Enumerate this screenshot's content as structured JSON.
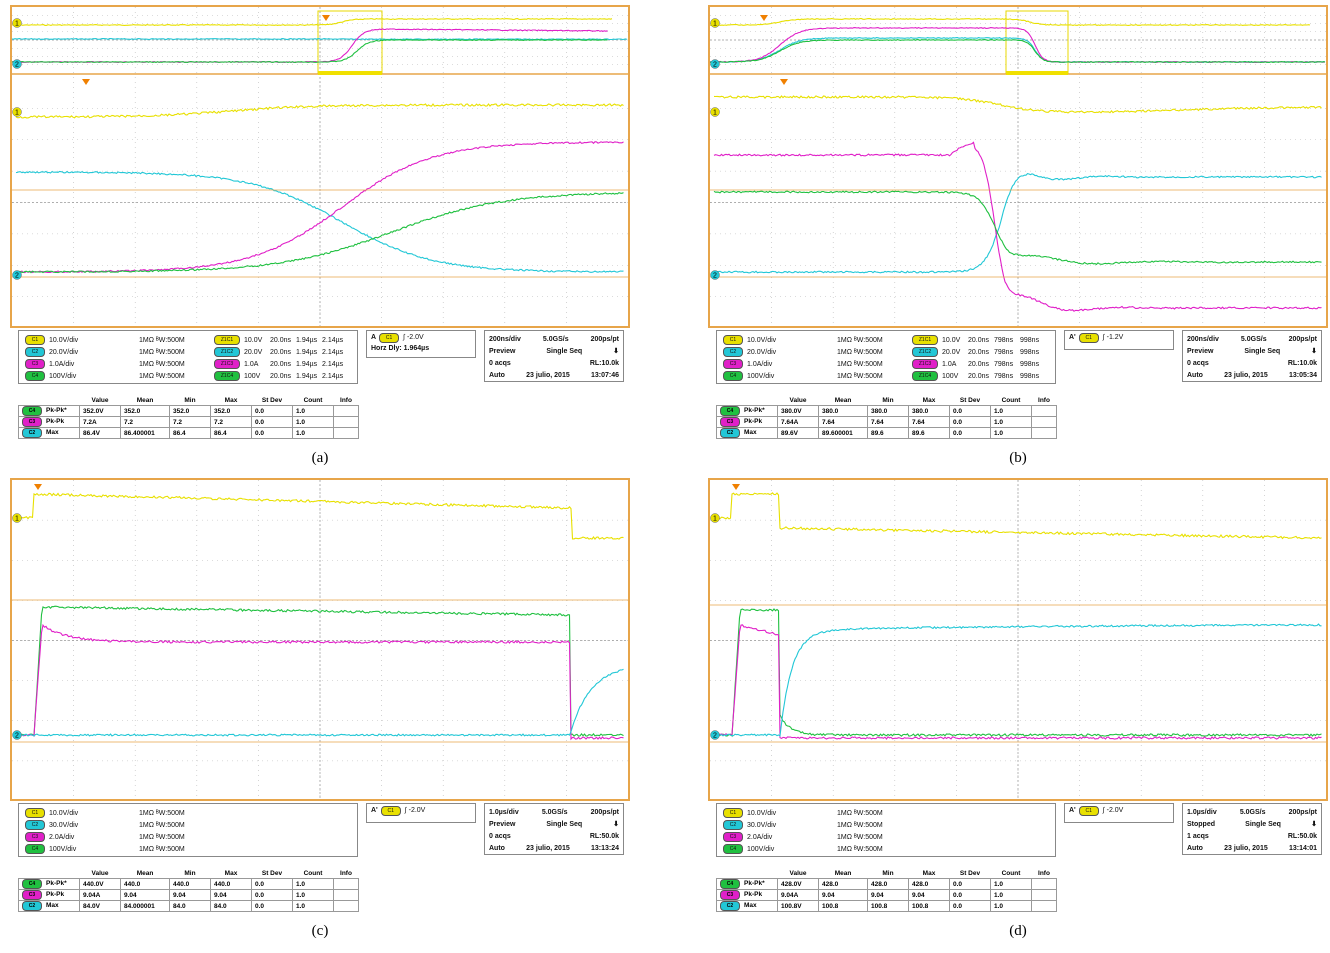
{
  "colors": {
    "ch1": "#e8e000",
    "ch2": "#22c7d6",
    "ch3": "#e020c8",
    "ch4": "#20c040",
    "grid": "#b8b8b8",
    "frame": "#e7a54a"
  },
  "panels": [
    {
      "id": "a",
      "caption": "(a)",
      "channels": [
        {
          "badge": "C1",
          "scale": "10.0V/div",
          "imp": "1MΩ ᴮW:500M",
          "zbadge": "Z1C1",
          "zscale": "10.0V",
          "t1": "20.0ns",
          "t2": "1.94µs",
          "t3": "2.14µs"
        },
        {
          "badge": "C2",
          "scale": "20.0V/div",
          "imp": "1MΩ ᴮW:500M",
          "zbadge": "Z1C2",
          "zscale": "20.0V",
          "t1": "20.0ns",
          "t2": "1.94µs",
          "t3": "2.14µs"
        },
        {
          "badge": "C3",
          "scale": "1.0A/div",
          "imp": "1MΩ ᴮW:500M",
          "zbadge": "Z1C3",
          "zscale": "1.0A",
          "t1": "20.0ns",
          "t2": "1.94µs",
          "t3": "2.14µs"
        },
        {
          "badge": "C4",
          "scale": "100V/div",
          "imp": "1MΩ ᴮW:500M",
          "zbadge": "Z1C4",
          "zscale": "100V",
          "t1": "20.0ns",
          "t2": "1.94µs",
          "t3": "2.14µs"
        }
      ],
      "trigger": {
        "mode": "A",
        "src": "C1",
        "level": "-2.0V",
        "extra": "Horz Dly:  1.964µs"
      },
      "acq": {
        "timebase": "200ns/div",
        "rate": "5.0GS/s",
        "res": "200ps/pt",
        "state": "Preview",
        "seq": "Single Seq",
        "acqs": "0 acqs",
        "rl": "RL:10.0k",
        "auto": "Auto",
        "date": "23 julio, 2015",
        "time": "13:07:46"
      },
      "meas": {
        "headers": [
          "Value",
          "Mean",
          "Min",
          "Max",
          "St Dev",
          "Count",
          "Info"
        ],
        "rows": [
          {
            "badge": "C4",
            "name": "Pk-Pk*",
            "cells": [
              "352.0V",
              "352.0",
              "352.0",
              "352.0",
              "0.0",
              "1.0",
              ""
            ]
          },
          {
            "badge": "C3",
            "name": "Pk-Pk",
            "cells": [
              "7.2A",
              "7.2",
              "7.2",
              "7.2",
              "0.0",
              "1.0",
              ""
            ]
          },
          {
            "badge": "C2",
            "name": "Max",
            "cells": [
              "86.4V",
              "86.400001",
              "86.4",
              "86.4",
              "0.0",
              "1.0",
              ""
            ]
          }
        ]
      }
    },
    {
      "id": "b",
      "caption": "(b)",
      "channels": [
        {
          "badge": "C1",
          "scale": "10.0V/div",
          "imp": "1MΩ ᴮW:500M",
          "zbadge": "Z1C1",
          "zscale": "10.0V",
          "t1": "20.0ns",
          "t2": "798ns",
          "t3": "998ns"
        },
        {
          "badge": "C2",
          "scale": "20.0V/div",
          "imp": "1MΩ ᴮW:500M",
          "zbadge": "Z1C2",
          "zscale": "20.0V",
          "t1": "20.0ns",
          "t2": "798ns",
          "t3": "998ns"
        },
        {
          "badge": "C3",
          "scale": "1.0A/div",
          "imp": "1MΩ ᴮW:500M",
          "zbadge": "Z1C3",
          "zscale": "1.0A",
          "t1": "20.0ns",
          "t2": "798ns",
          "t3": "998ns"
        },
        {
          "badge": "C4",
          "scale": "100V/div",
          "imp": "1MΩ ᴮW:500M",
          "zbadge": "Z1C4",
          "zscale": "100V",
          "t1": "20.0ns",
          "t2": "798ns",
          "t3": "998ns"
        }
      ],
      "trigger": {
        "mode": "A'",
        "src": "C1",
        "level": "-1.2V",
        "extra": ""
      },
      "acq": {
        "timebase": "200ns/div",
        "rate": "5.0GS/s",
        "res": "200ps/pt",
        "state": "Preview",
        "seq": "Single Seq",
        "acqs": "0 acqs",
        "rl": "RL:10.0k",
        "auto": "Auto",
        "date": "23 julio, 2015",
        "time": "13:05:34"
      },
      "meas": {
        "headers": [
          "Value",
          "Mean",
          "Min",
          "Max",
          "St Dev",
          "Count",
          "Info"
        ],
        "rows": [
          {
            "badge": "C4",
            "name": "Pk-Pk*",
            "cells": [
              "380.0V",
              "380.0",
              "380.0",
              "380.0",
              "0.0",
              "1.0",
              ""
            ]
          },
          {
            "badge": "C3",
            "name": "Pk-Pk",
            "cells": [
              "7.64A",
              "7.64",
              "7.64",
              "7.64",
              "0.0",
              "1.0",
              ""
            ]
          },
          {
            "badge": "C2",
            "name": "Max",
            "cells": [
              "89.6V",
              "89.600001",
              "89.6",
              "89.6",
              "0.0",
              "1.0",
              ""
            ]
          }
        ]
      }
    },
    {
      "id": "c",
      "caption": "(c)",
      "channels": [
        {
          "badge": "C1",
          "scale": "10.0V/div",
          "imp": "1MΩ ᴮW:500M"
        },
        {
          "badge": "C2",
          "scale": "30.0V/div",
          "imp": "1MΩ ᴮW:500M"
        },
        {
          "badge": "C3",
          "scale": "2.0A/div",
          "imp": "1MΩ ᴮW:500M"
        },
        {
          "badge": "C4",
          "scale": "100V/div",
          "imp": "1MΩ ᴮW:500M"
        }
      ],
      "trigger": {
        "mode": "A'",
        "src": "C1",
        "level": "-2.0V",
        "extra": ""
      },
      "acq": {
        "timebase": "1.0µs/div",
        "rate": "5.0GS/s",
        "res": "200ps/pt",
        "state": "Preview",
        "seq": "Single Seq",
        "acqs": "0 acqs",
        "rl": "RL:50.0k",
        "auto": "Auto",
        "date": "23 julio, 2015",
        "time": "13:13:24"
      },
      "meas": {
        "headers": [
          "Value",
          "Mean",
          "Min",
          "Max",
          "St Dev",
          "Count",
          "Info"
        ],
        "rows": [
          {
            "badge": "C4",
            "name": "Pk-Pk*",
            "cells": [
              "440.0V",
              "440.0",
              "440.0",
              "440.0",
              "0.0",
              "1.0",
              ""
            ]
          },
          {
            "badge": "C3",
            "name": "Pk-Pk",
            "cells": [
              "9.04A",
              "9.04",
              "9.04",
              "9.04",
              "0.0",
              "1.0",
              ""
            ]
          },
          {
            "badge": "C2",
            "name": "Max",
            "cells": [
              "84.0V",
              "84.000001",
              "84.0",
              "84.0",
              "0.0",
              "1.0",
              ""
            ]
          }
        ]
      }
    },
    {
      "id": "d",
      "caption": "(d)",
      "channels": [
        {
          "badge": "C1",
          "scale": "10.0V/div",
          "imp": "1MΩ ᴮW:500M"
        },
        {
          "badge": "C2",
          "scale": "30.0V/div",
          "imp": "1MΩ ᴮW:500M"
        },
        {
          "badge": "C3",
          "scale": "2.0A/div",
          "imp": "1MΩ ᴮW:500M"
        },
        {
          "badge": "C4",
          "scale": "100V/div",
          "imp": "1MΩ ᴮW:500M"
        }
      ],
      "trigger": {
        "mode": "A'",
        "src": "C1",
        "level": "-2.0V",
        "extra": ""
      },
      "acq": {
        "timebase": "1.0µs/div",
        "rate": "5.0GS/s",
        "res": "200ps/pt",
        "state": "Stopped",
        "seq": "Single Seq",
        "acqs": "1 acqs",
        "rl": "RL:50.0k",
        "auto": "Auto",
        "date": "23 julio, 2015",
        "time": "13:14:01"
      },
      "meas": {
        "headers": [
          "Value",
          "Mean",
          "Min",
          "Max",
          "St Dev",
          "Count",
          "Info"
        ],
        "rows": [
          {
            "badge": "C4",
            "name": "Pk-Pk*",
            "cells": [
              "428.0V",
              "428.0",
              "428.0",
              "428.0",
              "0.0",
              "1.0",
              ""
            ]
          },
          {
            "badge": "C3",
            "name": "Pk-Pk",
            "cells": [
              "9.04A",
              "9.04",
              "9.04",
              "9.04",
              "0.0",
              "1.0",
              ""
            ]
          },
          {
            "badge": "C2",
            "name": "Max",
            "cells": [
              "100.8V",
              "100.8",
              "100.8",
              "100.8",
              "0.0",
              "1.0",
              ""
            ]
          }
        ]
      }
    }
  ],
  "chart_data": [
    {
      "type": "line",
      "panel": "a",
      "grid": "on",
      "xdivs": 10,
      "ydivs": 8,
      "series": []
    },
    {
      "type": "line",
      "panel": "b",
      "grid": "on",
      "xdivs": 10,
      "ydivs": 8,
      "series": []
    },
    {
      "type": "line",
      "panel": "c",
      "grid": "on",
      "xdivs": 10,
      "ydivs": 8,
      "series": []
    },
    {
      "type": "line",
      "panel": "d",
      "grid": "on",
      "xdivs": 10,
      "ydivs": 8,
      "series": []
    }
  ]
}
